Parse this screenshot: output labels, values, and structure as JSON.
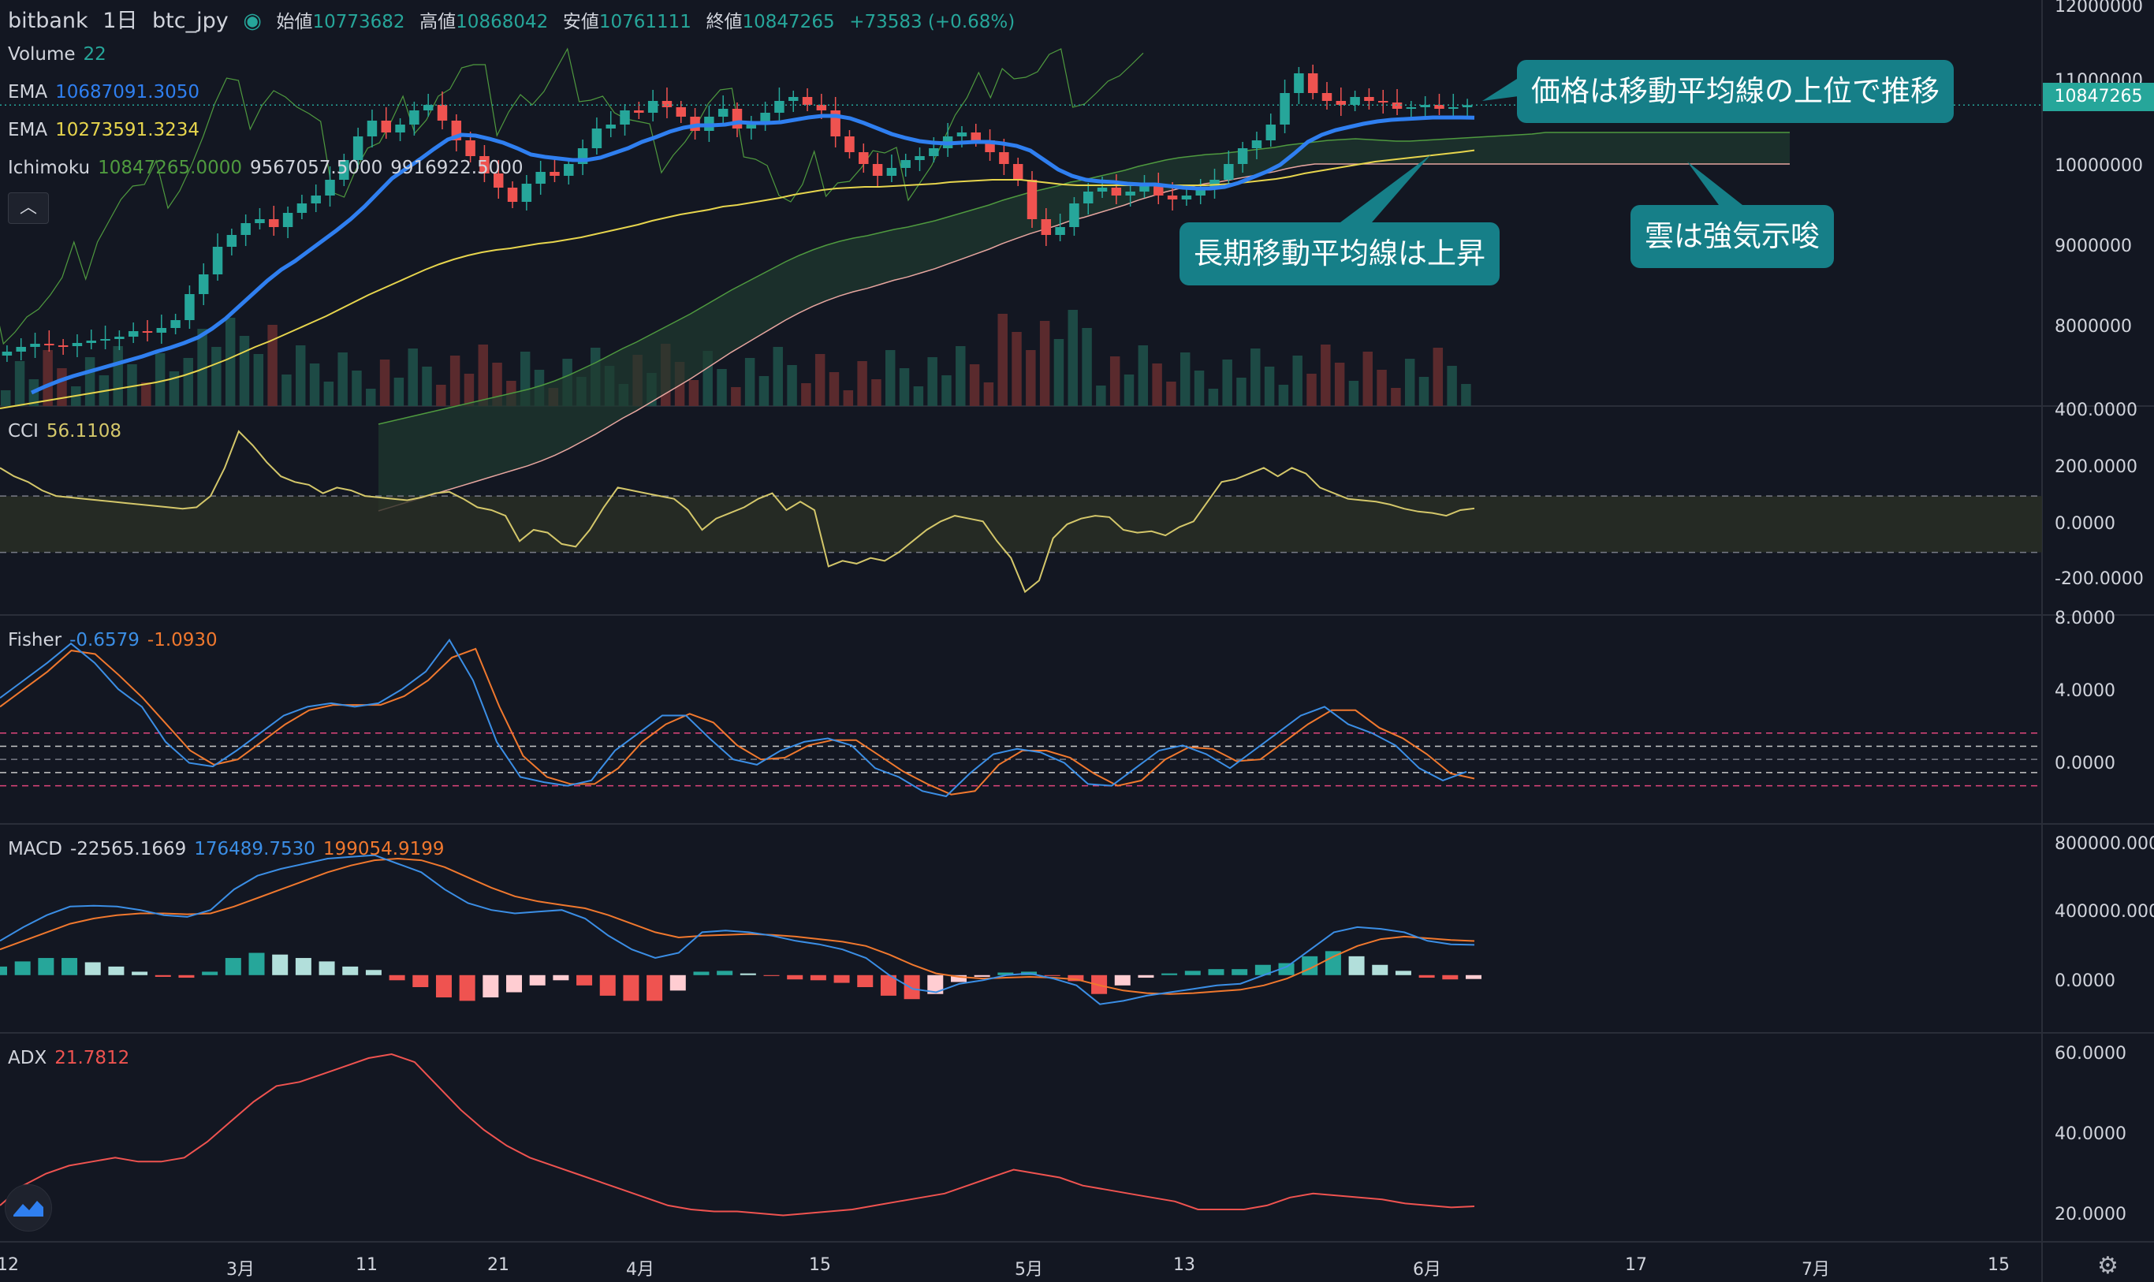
{
  "header": {
    "exchange": "bitbank",
    "timeframe": "1日",
    "symbol": "btc_jpy",
    "open_label": "始値",
    "open": "10773682",
    "high_label": "高値",
    "high": "10868042",
    "low_label": "安値",
    "low": "10761111",
    "close_label": "終値",
    "close": "10847265",
    "change": "+73583 (+0.68%)"
  },
  "legends": {
    "volume": {
      "name": "Volume",
      "value": "22"
    },
    "ema_fast": {
      "name": "EMA",
      "value": "10687091.3050"
    },
    "ema_slow": {
      "name": "EMA",
      "value": "10273591.3234"
    },
    "ichimoku": {
      "name": "Ichimoku",
      "v1": "10847265.0000",
      "v2": "9567057.5000",
      "v3": "9916922.5000"
    },
    "cci": {
      "name": "CCI",
      "value": "56.1108"
    },
    "fisher": {
      "name": "Fisher",
      "v1": "-0.6579",
      "v2": "-1.0930"
    },
    "macd": {
      "name": "MACD",
      "v1": "-22565.1669",
      "v2": "176489.7530",
      "v3": "199054.9199"
    },
    "adx": {
      "name": "ADX",
      "value": "21.7812"
    }
  },
  "price_tag": "10847265",
  "callouts": {
    "c1": "価格は移動平均線の上位で推移",
    "c2": "長期移動平均線は上昇",
    "c3": "雲は強気示唆"
  },
  "colors": {
    "up": "#26a69a",
    "down": "#ef5350",
    "ema_fast": "#2f7ff0",
    "ema_slow": "#e7d54d",
    "cci": "#d4c76a",
    "fisher": "#3b8ee5",
    "trigger": "#f0782e",
    "adx": "#ef5350",
    "cloud_fill": "#1f3a2f",
    "span_a": "#4f9a3f",
    "span_b": "#e8a6a0",
    "callout": "#167f88"
  },
  "chart_data": [
    {
      "type": "candlestick",
      "panel": "price",
      "title": "bitbank 1日 btc_jpy",
      "y_ticks": [
        "12000000",
        "11000000",
        "10000000",
        "9000000",
        "8000000"
      ],
      "x_ticks": [
        "12",
        "3月",
        "11",
        "21",
        "4月",
        "15",
        "5月",
        "13",
        "6月",
        "17",
        "7月",
        "15"
      ],
      "close": [
        7720000,
        7780000,
        7820000,
        7800000,
        7790000,
        7830000,
        7860000,
        7880000,
        7910000,
        7980000,
        7960000,
        8020000,
        8120000,
        8450000,
        8700000,
        9050000,
        9200000,
        9350000,
        9400000,
        9300000,
        9480000,
        9600000,
        9700000,
        9900000,
        10150000,
        10450000,
        10650000,
        10500000,
        10600000,
        10780000,
        10850000,
        10650000,
        10400000,
        10200000,
        9980000,
        9800000,
        9620000,
        9850000,
        10000000,
        9950000,
        10100000,
        10300000,
        10550000,
        10600000,
        10780000,
        10750000,
        10900000,
        10820000,
        10700000,
        10520000,
        10700000,
        10800000,
        10550000,
        10600000,
        10750000,
        10900000,
        10950000,
        10850000,
        10780000,
        10450000,
        10250000,
        10100000,
        9950000,
        10050000,
        10150000,
        10200000,
        10300000,
        10450000,
        10500000,
        10400000,
        10250000,
        10100000,
        9900000,
        9400000,
        9200000,
        9300000,
        9600000,
        9750000,
        9800000,
        9700000,
        9750000,
        9850000,
        9700000,
        9650000,
        9700000,
        9800000,
        9900000,
        10100000,
        10300000,
        10400000,
        10600000,
        11000000,
        11250000,
        11000000,
        10900000,
        10850000,
        10950000,
        10900000,
        10880000,
        10800000,
        10820000,
        10850000,
        10800000,
        10820000,
        10847265
      ],
      "ema_fast": [
        7200000,
        7280000,
        7350000,
        7410000,
        7460000,
        7510000,
        7560000,
        7610000,
        7660000,
        7720000,
        7770000,
        7830000,
        7900000,
        8010000,
        8140000,
        8300000,
        8460000,
        8620000,
        8760000,
        8870000,
        9000000,
        9130000,
        9260000,
        9400000,
        9560000,
        9740000,
        9920000,
        10040000,
        10160000,
        10290000,
        10410000,
        10470000,
        10460000,
        10420000,
        10370000,
        10300000,
        10220000,
        10190000,
        10170000,
        10150000,
        10150000,
        10180000,
        10240000,
        10300000,
        10380000,
        10440000,
        10510000,
        10560000,
        10590000,
        10590000,
        10600000,
        10630000,
        10620000,
        10620000,
        10630000,
        10660000,
        10690000,
        10710000,
        10710000,
        10680000,
        10620000,
        10550000,
        10480000,
        10430000,
        10390000,
        10370000,
        10360000,
        10370000,
        10380000,
        10380000,
        10360000,
        10330000,
        10270000,
        10150000,
        10030000,
        9950000,
        9900000,
        9880000,
        9870000,
        9850000,
        9840000,
        9840000,
        9820000,
        9800000,
        9790000,
        9790000,
        9810000,
        9860000,
        9930000,
        10000000,
        10090000,
        10230000,
        10380000,
        10470000,
        10530000,
        10570000,
        10610000,
        10640000,
        10660000,
        10670000,
        10680000,
        10690000,
        10690000,
        10690000,
        10687091
      ],
      "ema_slow": [
        7000000,
        7030000,
        7060000,
        7090000,
        7120000,
        7150000,
        7180000,
        7210000,
        7240000,
        7270000,
        7300000,
        7330000,
        7370000,
        7420000,
        7480000,
        7550000,
        7620000,
        7700000,
        7780000,
        7850000,
        7930000,
        8010000,
        8090000,
        8170000,
        8260000,
        8350000,
        8440000,
        8520000,
        8600000,
        8680000,
        8760000,
        8830000,
        8890000,
        8940000,
        8980000,
        9010000,
        9030000,
        9060000,
        9090000,
        9110000,
        9140000,
        9170000,
        9210000,
        9250000,
        9290000,
        9330000,
        9380000,
        9420000,
        9460000,
        9490000,
        9520000,
        9560000,
        9580000,
        9610000,
        9640000,
        9670000,
        9710000,
        9740000,
        9770000,
        9790000,
        9800000,
        9810000,
        9810000,
        9820000,
        9830000,
        9840000,
        9850000,
        9870000,
        9880000,
        9890000,
        9900000,
        9900000,
        9900000,
        9880000,
        9860000,
        9840000,
        9830000,
        9830000,
        9830000,
        9830000,
        9830000,
        9830000,
        9830000,
        9830000,
        9830000,
        9830000,
        9840000,
        9850000,
        9870000,
        9890000,
        9910000,
        9940000,
        9980000,
        10010000,
        10040000,
        10070000,
        10100000,
        10130000,
        10150000,
        10170000,
        10190000,
        10210000,
        10230000,
        10250000,
        10273591
      ],
      "span_a": [],
      "volume_note": "volume bars in lower part of price pane"
    },
    {
      "type": "line",
      "panel": "CCI",
      "name": "CCI",
      "y_ticks": [
        "400.0000",
        "200.0000",
        "0.0000",
        "-200.0000"
      ],
      "ylim": [
        -300,
        400
      ],
      "bands": [
        100,
        -100
      ],
      "values": [
        200,
        170,
        150,
        120,
        100,
        95,
        90,
        85,
        80,
        75,
        70,
        65,
        60,
        55,
        60,
        100,
        200,
        330,
        280,
        220,
        170,
        150,
        140,
        110,
        130,
        120,
        100,
        95,
        90,
        85,
        95,
        110,
        115,
        90,
        60,
        50,
        30,
        -60,
        -20,
        -30,
        -70,
        -80,
        -20,
        60,
        130,
        120,
        110,
        100,
        90,
        50,
        -20,
        20,
        40,
        60,
        90,
        110,
        50,
        80,
        50,
        -150,
        -130,
        -140,
        -120,
        -130,
        -100,
        -60,
        -20,
        10,
        30,
        20,
        10,
        -60,
        -120,
        -240,
        -200,
        -50,
        0,
        20,
        30,
        25,
        -20,
        -30,
        -25,
        -40,
        -10,
        10,
        80,
        150,
        160,
        180,
        200,
        170,
        200,
        180,
        130,
        110,
        90,
        85,
        80,
        70,
        55,
        45,
        40,
        30,
        50,
        56
      ]
    },
    {
      "type": "line",
      "panel": "Fisher",
      "name": "Fisher",
      "y_ticks": [
        "8.0000",
        "4.0000",
        "0.0000"
      ],
      "ylim": [
        -3,
        8
      ],
      "bands": [
        1.5,
        0.75,
        0,
        -0.75,
        -1.5
      ],
      "fisher": [
        3.5,
        4.5,
        5.5,
        6.6,
        5.5,
        4.0,
        3.0,
        1.0,
        -0.2,
        -0.4,
        0.5,
        1.5,
        2.5,
        3.0,
        3.2,
        3.0,
        3.2,
        4.0,
        5.0,
        6.8,
        4.5,
        1.0,
        -1.0,
        -1.3,
        -1.5,
        -1.2,
        0.5,
        1.5,
        2.5,
        2.5,
        1.2,
        0.0,
        -0.3,
        0.5,
        1.0,
        1.2,
        0.8,
        -0.5,
        -1.0,
        -1.8,
        -2.1,
        -0.8,
        0.3,
        0.6,
        0.4,
        -0.2,
        -1.4,
        -1.5,
        -0.5,
        0.5,
        0.8,
        0.3,
        -0.5,
        0.5,
        1.5,
        2.5,
        3.0,
        2.0,
        1.5,
        0.8,
        -0.5,
        -1.2,
        -0.7
      ],
      "trigger": [
        3.0,
        4.0,
        5.0,
        6.2,
        6.0,
        4.8,
        3.5,
        2.0,
        0.5,
        -0.3,
        0.0,
        1.0,
        2.0,
        2.8,
        3.1,
        3.1,
        3.1,
        3.6,
        4.5,
        5.8,
        6.3,
        3.0,
        0.2,
        -1.0,
        -1.4,
        -1.4,
        -0.5,
        1.0,
        2.0,
        2.6,
        2.1,
        0.8,
        0.0,
        0.1,
        0.8,
        1.1,
        1.1,
        0.2,
        -0.7,
        -1.4,
        -2.0,
        -1.8,
        -0.3,
        0.5,
        0.5,
        0.1,
        -0.8,
        -1.5,
        -1.2,
        0.0,
        0.7,
        0.6,
        -0.1,
        0.0,
        1.0,
        2.0,
        2.8,
        2.8,
        1.8,
        1.2,
        0.3,
        -0.8,
        -1.09
      ]
    },
    {
      "type": "line",
      "panel": "MACD",
      "name": "MACD",
      "y_ticks": [
        "800000.0000",
        "400000.0000",
        "0.0000"
      ],
      "ylim": [
        -300000,
        850000
      ],
      "macd": [
        200000,
        280000,
        350000,
        400000,
        405000,
        400000,
        380000,
        350000,
        340000,
        380000,
        500000,
        580000,
        620000,
        650000,
        680000,
        690000,
        700000,
        650000,
        600000,
        500000,
        420000,
        380000,
        360000,
        370000,
        380000,
        330000,
        230000,
        150000,
        100000,
        130000,
        250000,
        260000,
        250000,
        230000,
        200000,
        180000,
        150000,
        100000,
        0,
        -80000,
        -100000,
        -50000,
        -30000,
        0,
        10000,
        -20000,
        -60000,
        -170000,
        -150000,
        -120000,
        -100000,
        -80000,
        -60000,
        -50000,
        0,
        50000,
        150000,
        250000,
        280000,
        270000,
        250000,
        200000,
        180000,
        176490
      ],
      "signal": [
        150000,
        200000,
        250000,
        300000,
        330000,
        350000,
        360000,
        360000,
        355000,
        360000,
        400000,
        450000,
        500000,
        550000,
        600000,
        640000,
        670000,
        680000,
        670000,
        630000,
        570000,
        510000,
        460000,
        430000,
        410000,
        390000,
        350000,
        300000,
        250000,
        220000,
        230000,
        235000,
        240000,
        235000,
        225000,
        210000,
        195000,
        170000,
        120000,
        60000,
        10000,
        -10000,
        -20000,
        -15000,
        -10000,
        -15000,
        -25000,
        -60000,
        -90000,
        -105000,
        -110000,
        -105000,
        -95000,
        -85000,
        -60000,
        -20000,
        40000,
        110000,
        170000,
        210000,
        225000,
        215000,
        205000,
        199055
      ],
      "hist_desc": "histogram = macd - signal"
    },
    {
      "type": "line",
      "panel": "ADX",
      "name": "ADX",
      "y_ticks": [
        "60.0000",
        "40.0000",
        "20.0000"
      ],
      "ylim": [
        15,
        65
      ],
      "values": [
        22,
        27,
        30,
        32,
        33,
        34,
        33,
        33,
        34,
        38,
        43,
        48,
        52,
        53,
        55,
        57,
        59,
        60,
        58,
        52,
        46,
        41,
        37,
        34,
        32,
        30,
        28,
        26,
        24,
        22,
        21,
        20.5,
        20.5,
        20,
        19.5,
        20,
        20.5,
        21,
        22,
        23,
        24,
        25,
        27,
        29,
        31,
        30,
        29,
        27,
        26,
        25,
        24,
        23,
        21,
        21,
        21,
        22,
        24,
        25,
        24.5,
        24,
        23.5,
        22.5,
        22,
        21.5,
        21.78
      ]
    }
  ]
}
